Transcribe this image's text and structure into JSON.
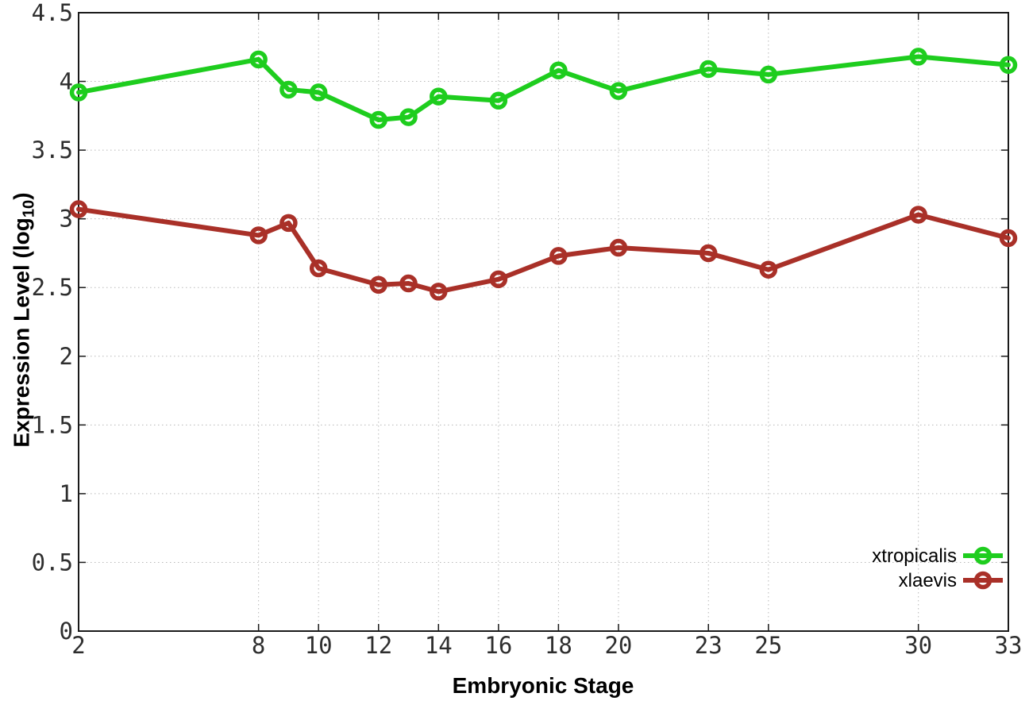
{
  "chart_data": {
    "type": "line",
    "title": "",
    "xlabel": "Embryonic Stage",
    "ylabel": {
      "main": "Expression Level (log",
      "sub": "10",
      "end": ")"
    },
    "x": [
      2,
      8,
      9,
      10,
      12,
      13,
      14,
      16,
      18,
      20,
      23,
      25,
      30,
      33
    ],
    "series": [
      {
        "name": "xtropicalis",
        "color": "#1ecd1e",
        "marker": "open-circle",
        "values": [
          3.92,
          4.16,
          3.94,
          3.92,
          3.72,
          3.74,
          3.89,
          3.86,
          4.08,
          3.93,
          4.09,
          4.05,
          4.18,
          4.12
        ]
      },
      {
        "name": "xlaevis",
        "color": "#a93028",
        "marker": "open-circle",
        "values": [
          3.07,
          2.88,
          2.97,
          2.64,
          2.52,
          2.53,
          2.47,
          2.56,
          2.73,
          2.79,
          2.75,
          2.63,
          3.03,
          2.86
        ]
      }
    ],
    "xlim": [
      2,
      33
    ],
    "ylim": [
      0,
      4.5
    ],
    "x_tick_values": [
      2,
      8,
      10,
      12,
      14,
      16,
      18,
      20,
      23,
      25,
      30,
      33
    ],
    "x_tick_labels": [
      "2",
      "8",
      "10",
      "12",
      "14",
      "16",
      "18",
      "20",
      "23",
      "25",
      "30",
      "33"
    ],
    "y_tick_values": [
      0,
      0.5,
      1,
      1.5,
      2,
      2.5,
      3,
      3.5,
      4,
      4.5
    ],
    "y_tick_labels": [
      "0",
      "0.5",
      "1",
      "1.5",
      "2",
      "2.5",
      "3",
      "3.5",
      "4",
      "4.5"
    ],
    "grid": true,
    "legend_position": "bottom-right",
    "colors": {
      "border": "#1a1a1a",
      "grid": "#b8b8b8",
      "tick_text": "#2e2e2e",
      "background": "#ffffff"
    }
  }
}
